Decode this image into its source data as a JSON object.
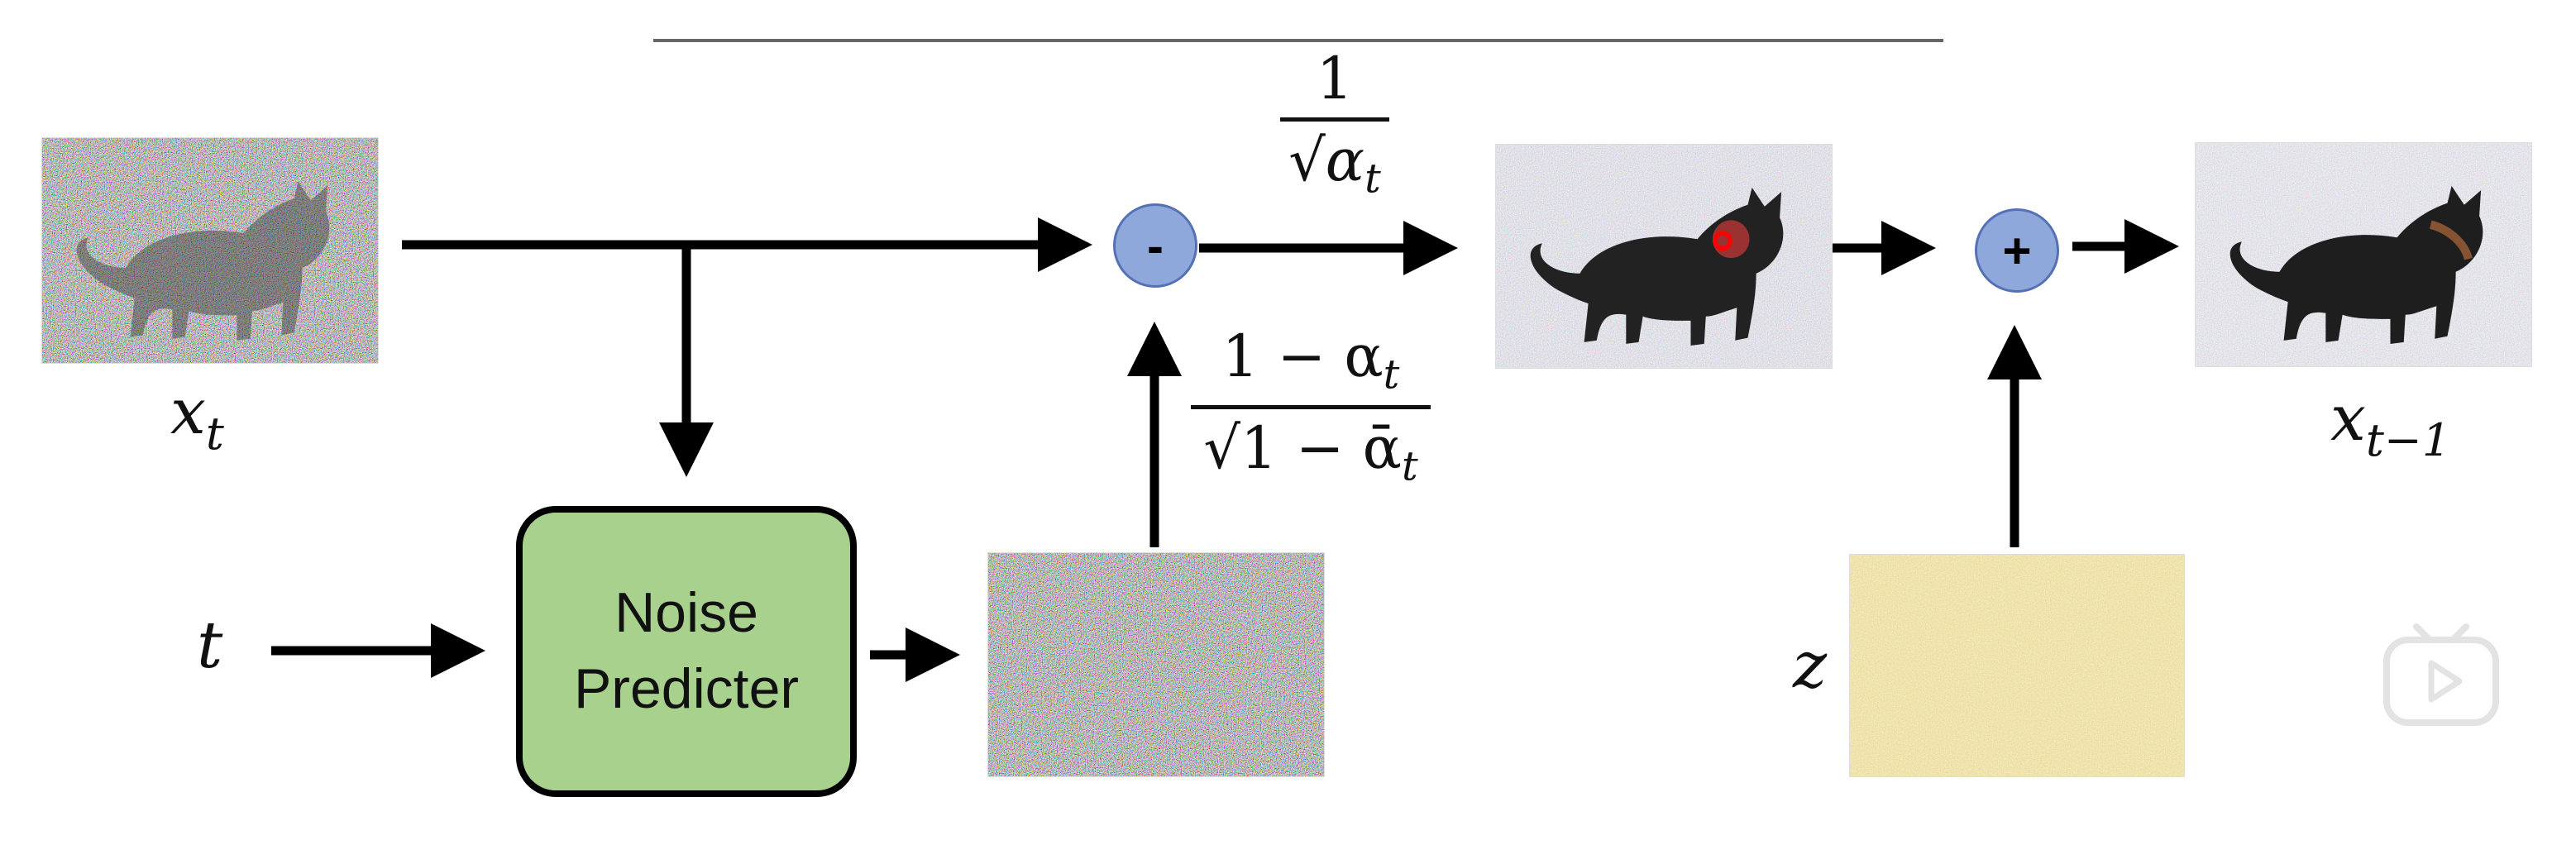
{
  "labels": {
    "x_t": "x",
    "x_t_sub": "t",
    "x_prev": "x",
    "x_prev_sub": "t−1",
    "t": "t",
    "z": "z"
  },
  "noise_predicter": {
    "line1": "Noise",
    "line2": "Predicter"
  },
  "operators": {
    "minus": "-",
    "plus": "+"
  },
  "coefficients": {
    "scale_num": "1",
    "scale_den": "√α",
    "scale_den_sub": "t",
    "noise_num": "1 − α",
    "noise_num_sub": "t",
    "noise_den": "√1 − ᾱ",
    "noise_den_sub": "t"
  },
  "colors": {
    "predicter_fill": "#a9d18e",
    "operator_fill": "#8fa8dc",
    "z_noise": "#e6c36a",
    "arrow": "#000000"
  },
  "icons": [
    "noisy-cat-image",
    "less-noisy-cat-image",
    "denoised-cat-image",
    "noise-image",
    "z-noise-image",
    "play-watermark-icon"
  ]
}
